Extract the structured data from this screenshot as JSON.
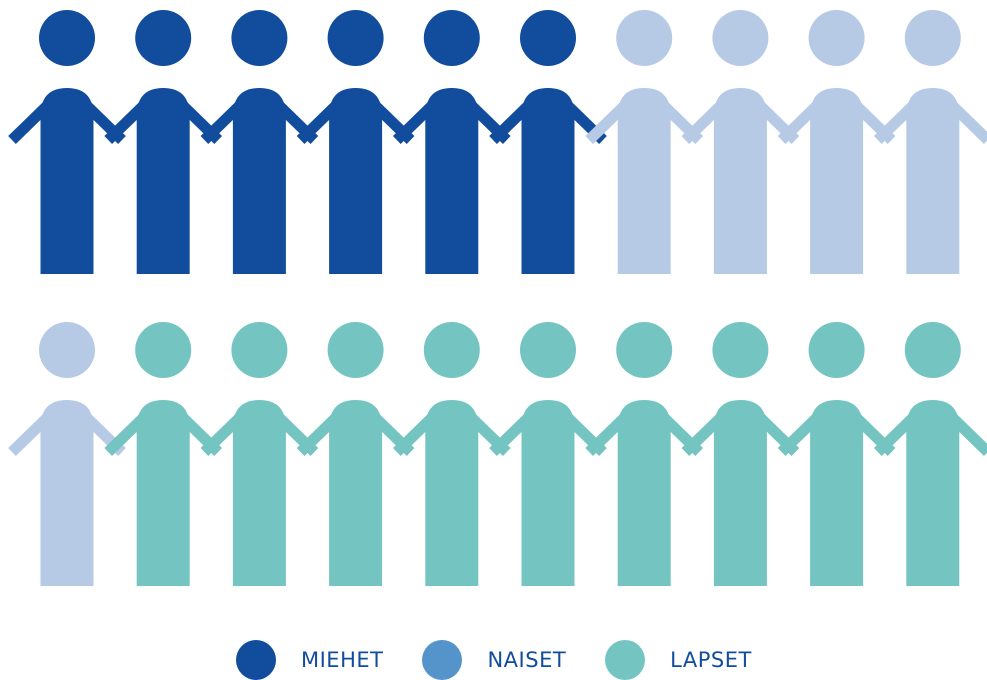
{
  "chart_data": {
    "type": "pictogram",
    "units_per_row": 10,
    "rows": 2,
    "total_icons": 20,
    "series": [
      {
        "name": "MIEHET",
        "count": 6,
        "color": "#124C9C",
        "icon_color": "#124C9C"
      },
      {
        "name": "NAISET",
        "count": 5,
        "color": "#5593CB",
        "icon_color": "#B6CAE6"
      },
      {
        "name": "LAPSET",
        "count": 9,
        "color": "#74C5C1",
        "icon_color": "#74C5C1"
      }
    ],
    "legend_position": "bottom"
  },
  "legend": {
    "items": [
      {
        "label": "MIEHET",
        "dot_color": "#124C9C",
        "text_color": "#124C9C"
      },
      {
        "label": "NAISET",
        "dot_color": "#5593CB",
        "text_color": "#124C9C"
      },
      {
        "label": "LAPSET",
        "dot_color": "#74C5C1",
        "text_color": "#124C9C"
      }
    ]
  },
  "icons": {
    "person": "person-icon",
    "legend_marker": "circle-icon"
  }
}
